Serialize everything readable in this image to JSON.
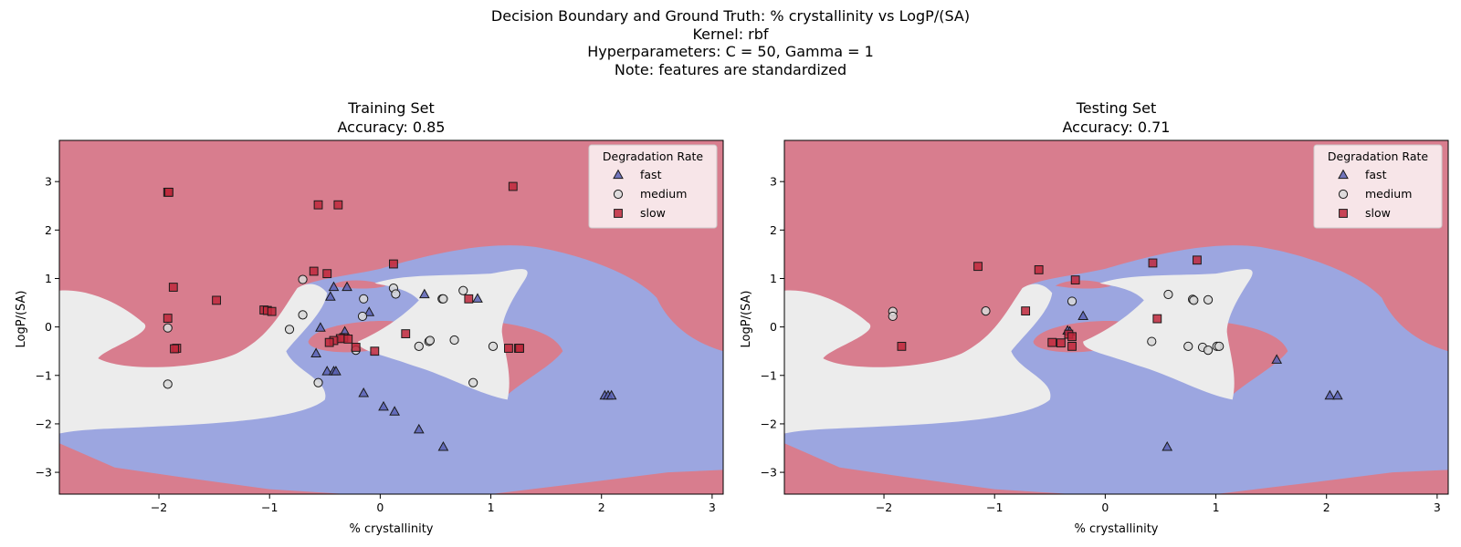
{
  "figure": {
    "suptitle_lines": [
      "Decision Boundary and Ground Truth: % crystallinity vs LogP/(SA)",
      "Kernel: rbf",
      "Hyperparameters: C = 50, Gamma = 1",
      "Note: features are standardized"
    ]
  },
  "colors": {
    "region_fast": "#9ca6e0",
    "region_medium": "#ececec",
    "region_slow": "#d87d8e",
    "marker_fast": "#5a62b4",
    "marker_medium": "#d9d9d9",
    "marker_slow": "#c0283c"
  },
  "chart_data": [
    {
      "type": "scatter",
      "panel_title": "Training Set",
      "subtitle": "Accuracy: 0.85",
      "xlabel": "% crystallinity",
      "ylabel": "LogP/(SA)",
      "xlim": [
        -2.9,
        3.1
      ],
      "ylim": [
        -3.45,
        3.85
      ],
      "xticks": [
        -2,
        -1,
        0,
        1,
        2,
        3
      ],
      "yticks": [
        -3,
        -2,
        -1,
        0,
        1,
        2,
        3
      ],
      "grid": false,
      "legend": {
        "title": "Degradation Rate",
        "position": "top-right"
      },
      "series": [
        {
          "name": "fast",
          "marker": "triangle",
          "points": [
            [
              -0.45,
              0.62
            ],
            [
              -0.42,
              0.82
            ],
            [
              -0.3,
              0.82
            ],
            [
              -0.1,
              0.3
            ],
            [
              -0.54,
              -0.02
            ],
            [
              -0.32,
              -0.1
            ],
            [
              -0.58,
              -0.55
            ],
            [
              -0.48,
              -0.92
            ],
            [
              -0.42,
              -0.92
            ],
            [
              -0.4,
              -0.92
            ],
            [
              -0.15,
              -1.37
            ],
            [
              0.03,
              -1.65
            ],
            [
              0.13,
              -1.75
            ],
            [
              0.35,
              -2.12
            ],
            [
              0.57,
              -2.48
            ],
            [
              0.4,
              0.67
            ],
            [
              0.88,
              0.58
            ],
            [
              2.03,
              -1.42
            ],
            [
              2.06,
              -1.42
            ],
            [
              2.09,
              -1.42
            ]
          ]
        },
        {
          "name": "medium",
          "marker": "circle",
          "points": [
            [
              -0.7,
              0.98
            ],
            [
              -0.15,
              0.58
            ],
            [
              0.12,
              0.8
            ],
            [
              0.14,
              0.68
            ],
            [
              -0.16,
              0.22
            ],
            [
              -0.82,
              -0.05
            ],
            [
              -0.7,
              0.25
            ],
            [
              -0.22,
              -0.48
            ],
            [
              0.35,
              -0.4
            ],
            [
              0.44,
              -0.3
            ],
            [
              0.45,
              -0.28
            ],
            [
              0.56,
              0.58
            ],
            [
              0.57,
              0.58
            ],
            [
              0.67,
              -0.27
            ],
            [
              0.75,
              0.75
            ],
            [
              1.02,
              -0.4
            ],
            [
              0.84,
              -1.15
            ],
            [
              -0.56,
              -1.15
            ],
            [
              -1.92,
              -0.02
            ],
            [
              -1.92,
              -1.18
            ]
          ]
        },
        {
          "name": "slow",
          "marker": "square",
          "points": [
            [
              -1.92,
              2.78
            ],
            [
              -1.91,
              2.78
            ],
            [
              -0.56,
              2.52
            ],
            [
              -0.38,
              2.52
            ],
            [
              1.2,
              2.9
            ],
            [
              -0.6,
              1.15
            ],
            [
              -0.48,
              1.1
            ],
            [
              0.12,
              1.3
            ],
            [
              -1.87,
              0.82
            ],
            [
              -1.48,
              0.55
            ],
            [
              -1.05,
              0.35
            ],
            [
              -1.02,
              0.34
            ],
            [
              -0.98,
              0.32
            ],
            [
              -1.92,
              0.18
            ],
            [
              -1.84,
              -0.44
            ],
            [
              -1.86,
              -0.45
            ],
            [
              -0.33,
              -0.22
            ],
            [
              -0.36,
              -0.24
            ],
            [
              -0.29,
              -0.25
            ],
            [
              -0.42,
              -0.28
            ],
            [
              -0.46,
              -0.32
            ],
            [
              -0.22,
              -0.42
            ],
            [
              -0.05,
              -0.5
            ],
            [
              0.23,
              -0.14
            ],
            [
              0.8,
              0.58
            ],
            [
              1.16,
              -0.44
            ],
            [
              1.25,
              -0.44
            ],
            [
              1.26,
              -0.44
            ]
          ]
        }
      ]
    },
    {
      "type": "scatter",
      "panel_title": "Testing Set",
      "subtitle": "Accuracy: 0.71",
      "xlabel": "% crystallinity",
      "ylabel": "LogP/(SA)",
      "xlim": [
        -2.9,
        3.1
      ],
      "ylim": [
        -3.45,
        3.85
      ],
      "xticks": [
        -2,
        -1,
        0,
        1,
        2,
        3
      ],
      "yticks": [
        -3,
        -2,
        -1,
        0,
        1,
        2,
        3
      ],
      "grid": false,
      "legend": {
        "title": "Degradation Rate",
        "position": "top-right"
      },
      "series": [
        {
          "name": "fast",
          "marker": "triangle",
          "points": [
            [
              -0.34,
              -0.08
            ],
            [
              -0.32,
              -0.1
            ],
            [
              -0.2,
              0.22
            ],
            [
              1.55,
              -0.68
            ],
            [
              2.03,
              -1.42
            ],
            [
              2.1,
              -1.42
            ],
            [
              0.56,
              -2.48
            ]
          ]
        },
        {
          "name": "medium",
          "marker": "circle",
          "points": [
            [
              -1.92,
              0.32
            ],
            [
              -1.92,
              0.22
            ],
            [
              -1.08,
              0.33
            ],
            [
              -0.3,
              0.53
            ],
            [
              0.57,
              0.67
            ],
            [
              0.79,
              0.57
            ],
            [
              0.8,
              0.55
            ],
            [
              0.93,
              0.56
            ],
            [
              0.42,
              -0.3
            ],
            [
              0.75,
              -0.4
            ],
            [
              0.88,
              -0.42
            ],
            [
              0.93,
              -0.48
            ],
            [
              1.01,
              -0.4
            ],
            [
              1.03,
              -0.4
            ]
          ]
        },
        {
          "name": "slow",
          "marker": "square",
          "points": [
            [
              -1.15,
              1.25
            ],
            [
              -0.6,
              1.18
            ],
            [
              0.43,
              1.32
            ],
            [
              0.83,
              1.38
            ],
            [
              -0.27,
              0.97
            ],
            [
              -0.72,
              0.33
            ],
            [
              0.47,
              0.17
            ],
            [
              -0.33,
              -0.15
            ],
            [
              -0.3,
              -0.2
            ],
            [
              -0.48,
              -0.32
            ],
            [
              -0.4,
              -0.33
            ],
            [
              -0.3,
              -0.4
            ],
            [
              -1.84,
              -0.4
            ]
          ]
        }
      ]
    }
  ]
}
